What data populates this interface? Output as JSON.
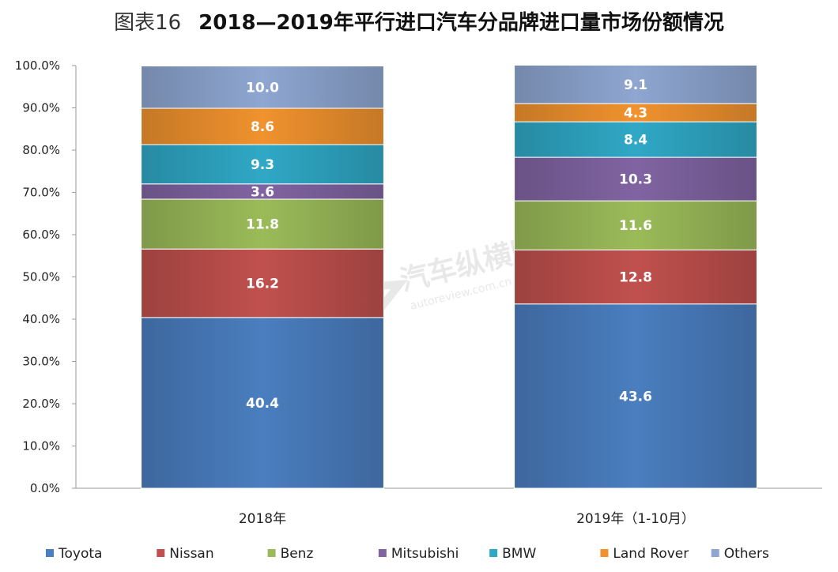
{
  "title": {
    "prefix": "图表16",
    "main": "2018—2019年平行进口汽车分品牌进口量市场份额情况"
  },
  "watermark": {
    "text": "汽车纵横网",
    "url": "autoreview.com.cn"
  },
  "chart_data": {
    "type": "bar",
    "stacked": true,
    "categories": [
      "2018年",
      "2019年（1-10月）"
    ],
    "series": [
      {
        "name": "Toyota",
        "values": [
          40.4,
          43.6
        ],
        "color": "#4a7ebf"
      },
      {
        "name": "Nissan",
        "values": [
          16.2,
          12.8
        ],
        "color": "#c0504d"
      },
      {
        "name": "Benz",
        "values": [
          11.8,
          11.6
        ],
        "color": "#9bbb59"
      },
      {
        "name": "Mitsubishi",
        "values": [
          3.6,
          10.3
        ],
        "color": "#8064a2"
      },
      {
        "name": "BMW",
        "values": [
          9.3,
          8.4
        ],
        "color": "#2fa8c6"
      },
      {
        "name": "Land Rover",
        "values": [
          8.6,
          4.3
        ],
        "color": "#f0922e"
      },
      {
        "name": "Others",
        "values": [
          10.0,
          9.1
        ],
        "color": "#8ea6d0"
      }
    ],
    "y_ticks": [
      "0.0%",
      "10.0%",
      "20.0%",
      "30.0%",
      "40.0%",
      "50.0%",
      "60.0%",
      "70.0%",
      "80.0%",
      "90.0%",
      "100.0%"
    ],
    "ylim": [
      0,
      100
    ],
    "legend_position": "bottom",
    "grid": false
  }
}
